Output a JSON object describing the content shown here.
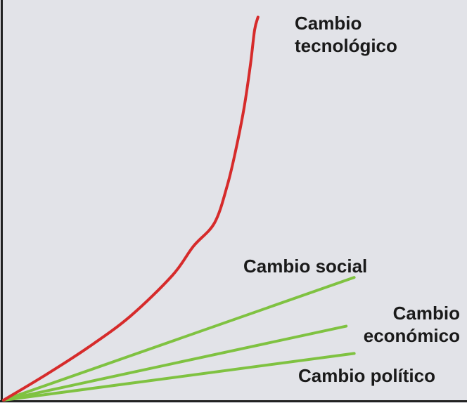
{
  "chart_data": {
    "type": "line",
    "title": "",
    "xlabel": "",
    "ylabel": "",
    "grid": false,
    "legend": "none",
    "xlim": [
      0,
      100
    ],
    "ylim": [
      0,
      100
    ],
    "series": [
      {
        "name": "Cambio tecnológico",
        "label_lines": [
          "Cambio",
          "tecnológico"
        ],
        "color": "#d62b2b",
        "x": [
          0,
          10,
          20,
          30,
          40,
          45,
          50,
          53,
          55,
          57,
          58.5,
          59.5,
          60.3
        ],
        "y": [
          0,
          6.5,
          13.5,
          21.5,
          32,
          39.5,
          45.5,
          55,
          64,
          75,
          86,
          95,
          98.3
        ]
      },
      {
        "name": "Cambio social",
        "label_lines": [
          "Cambio social"
        ],
        "color": "#7fc241",
        "x": [
          0,
          83.1
        ],
        "y": [
          0,
          31.5
        ]
      },
      {
        "name": "Cambio económico",
        "label_lines": [
          "Cambio",
          "económico"
        ],
        "color": "#7fc241",
        "x": [
          0,
          81.2
        ],
        "y": [
          0,
          19
        ]
      },
      {
        "name": "Cambio político",
        "label_lines": [
          "Cambio político"
        ],
        "color": "#7fc241",
        "x": [
          0,
          83.1
        ],
        "y": [
          0,
          12
        ]
      }
    ]
  }
}
